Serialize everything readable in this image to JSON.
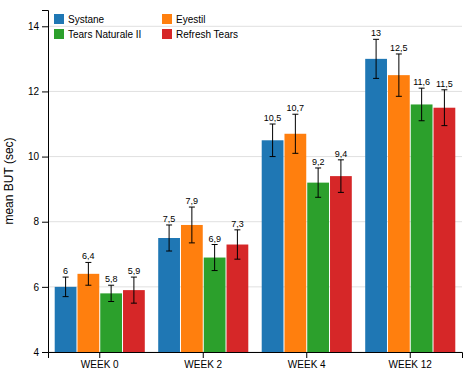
{
  "chart_data": {
    "type": "bar",
    "ylabel": "mean BUT (sec)",
    "categories": [
      "WEEK 0",
      "WEEK 2",
      "WEEK 4",
      "WEEK 12"
    ],
    "series": [
      {
        "name": "Systane",
        "values": [
          6.0,
          7.5,
          10.5,
          13.0
        ],
        "errors": [
          0.3,
          0.4,
          0.5,
          0.6
        ],
        "value_labels": [
          "6",
          "7,5",
          "10,5",
          "13"
        ]
      },
      {
        "name": "Eyestil",
        "values": [
          6.4,
          7.9,
          10.7,
          12.5
        ],
        "errors": [
          0.35,
          0.55,
          0.6,
          0.65
        ],
        "value_labels": [
          "6,4",
          "7,9",
          "10,7",
          "12,5"
        ]
      },
      {
        "name": "Tears Naturale II",
        "values": [
          5.8,
          6.9,
          9.2,
          11.6
        ],
        "errors": [
          0.25,
          0.4,
          0.45,
          0.5
        ],
        "value_labels": [
          "5,8",
          "6,9",
          "9,2",
          "11,6"
        ]
      },
      {
        "name": "Refresh Tears",
        "values": [
          5.9,
          7.3,
          9.4,
          11.5
        ],
        "errors": [
          0.4,
          0.45,
          0.5,
          0.55
        ],
        "value_labels": [
          "5,9",
          "7,3",
          "9,4",
          "11,5"
        ]
      }
    ],
    "ylim": [
      4,
      14.5
    ],
    "yticks": [
      4,
      6,
      8,
      10,
      12,
      14
    ],
    "grid": true,
    "legend": "upper left",
    "data_labels": true
  }
}
